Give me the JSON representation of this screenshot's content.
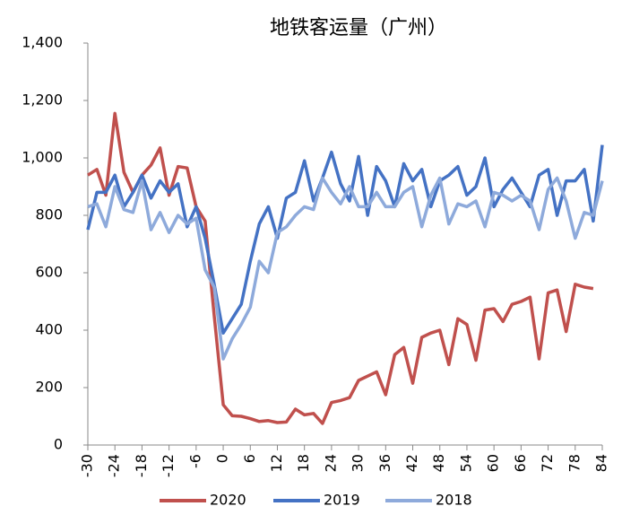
{
  "chart_data": {
    "type": "line",
    "title": "地铁客运量（广州）",
    "x": [
      -30,
      -28,
      -26,
      -24,
      -22,
      -20,
      -18,
      -16,
      -14,
      -12,
      -10,
      -8,
      -6,
      -4,
      -2,
      0,
      2,
      4,
      6,
      8,
      10,
      12,
      14,
      16,
      18,
      20,
      22,
      24,
      26,
      28,
      30,
      32,
      34,
      36,
      38,
      40,
      42,
      44,
      46,
      48,
      50,
      52,
      54,
      56,
      58,
      60,
      62,
      64,
      66,
      68,
      70,
      72,
      74,
      76,
      78,
      80,
      82,
      84
    ],
    "series": [
      {
        "name": "2020",
        "color": "#c0504d",
        "values": [
          940,
          960,
          870,
          1155,
          950,
          880,
          940,
          975,
          1035,
          870,
          970,
          965,
          830,
          780,
          450,
          140,
          102,
          100,
          92,
          82,
          85,
          78,
          80,
          125,
          105,
          110,
          75,
          148,
          155,
          165,
          225,
          240,
          255,
          175,
          315,
          340,
          215,
          375,
          390,
          400,
          280,
          440,
          420,
          295,
          470,
          475,
          430,
          490,
          500,
          515,
          300,
          530,
          540,
          395,
          560,
          550,
          545,
          null
        ]
      },
      {
        "name": "2019",
        "color": "#4472c4",
        "values": [
          750,
          880,
          880,
          940,
          830,
          880,
          940,
          860,
          920,
          880,
          910,
          760,
          830,
          720,
          560,
          390,
          440,
          490,
          640,
          770,
          830,
          720,
          860,
          880,
          990,
          850,
          930,
          1020,
          910,
          850,
          1005,
          800,
          970,
          920,
          830,
          980,
          920,
          960,
          830,
          920,
          940,
          970,
          870,
          900,
          1000,
          830,
          890,
          930,
          880,
          830,
          940,
          960,
          800,
          920,
          920,
          960,
          780,
          1045
        ]
      },
      {
        "name": "2018",
        "color": "#8eaadb",
        "values": [
          830,
          840,
          760,
          900,
          820,
          810,
          920,
          750,
          810,
          740,
          800,
          770,
          790,
          610,
          550,
          300,
          370,
          420,
          480,
          640,
          600,
          740,
          760,
          800,
          830,
          820,
          930,
          880,
          840,
          900,
          830,
          830,
          880,
          830,
          830,
          880,
          900,
          760,
          870,
          930,
          770,
          840,
          830,
          850,
          760,
          880,
          870,
          850,
          870,
          850,
          750,
          890,
          930,
          850,
          720,
          810,
          800,
          920
        ]
      }
    ],
    "xlim": [
      -30,
      84
    ],
    "xticks": [
      -30,
      -24,
      -18,
      -12,
      -6,
      0,
      6,
      12,
      18,
      24,
      30,
      36,
      42,
      48,
      54,
      60,
      66,
      72,
      78,
      84
    ],
    "ylim": [
      0,
      1400
    ],
    "yticks": [
      0,
      200,
      400,
      600,
      800,
      {
        "value": 1000,
        "label": "1,000"
      },
      {
        "value": 1200,
        "label": "1,200"
      },
      {
        "value": 1400,
        "label": "1,400"
      }
    ],
    "grid": false,
    "legend": "bottom"
  }
}
